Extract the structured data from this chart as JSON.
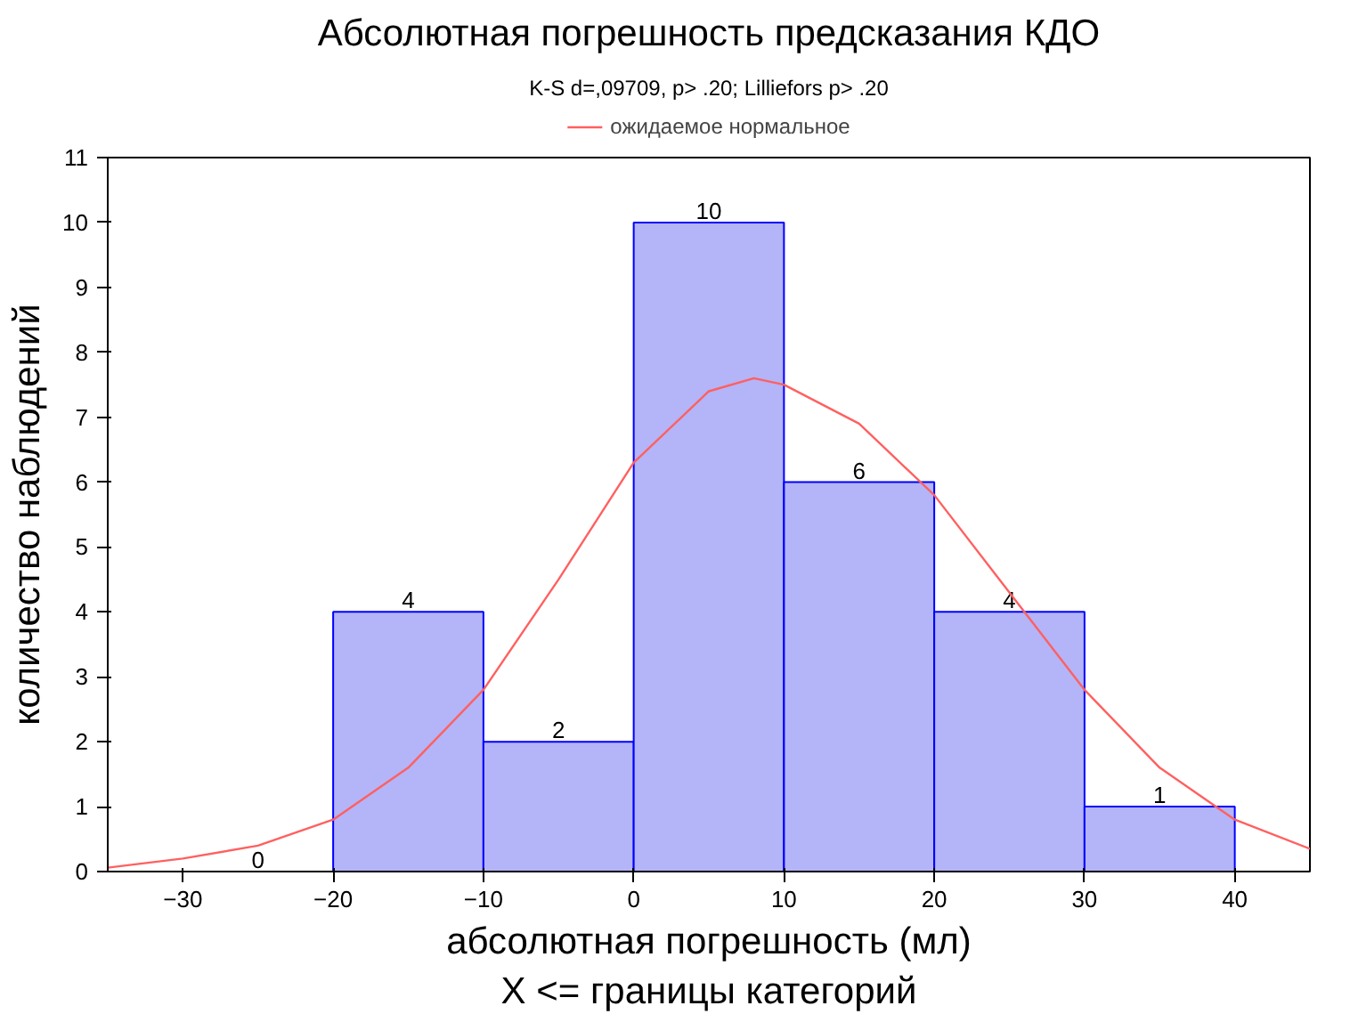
{
  "chart_data": {
    "type": "histogram",
    "title": "Абсолютная погрешность предсказания КДО",
    "subtitle": "K-S d=,09709, p> .20; Lilliefors p> .20",
    "xlabel": "абсолютная погрешность (мл)\nX <= границы категорий",
    "ylabel": "количество наблюдений",
    "bins": [
      -30,
      -20,
      -10,
      0,
      10,
      20,
      30,
      40
    ],
    "values": [
      0,
      4,
      2,
      10,
      6,
      4,
      1
    ],
    "color": "#b4b4f8",
    "value_labels": [
      "0",
      "4",
      "2",
      "10",
      "6",
      "4",
      "1"
    ],
    "series": [
      {
        "type": "line",
        "name": "ожидаемое нормальное",
        "color": "#ff6060",
        "x": [
          -35,
          -30,
          -25,
          -20,
          -15,
          -10,
          -5,
          0,
          5,
          8,
          10,
          15,
          20,
          25,
          30,
          35,
          40,
          45
        ],
        "values": [
          0.06,
          0.2,
          0.4,
          0.8,
          1.6,
          2.8,
          4.5,
          6.3,
          7.4,
          7.6,
          7.5,
          6.9,
          5.8,
          4.3,
          2.8,
          1.6,
          0.8,
          0.35
        ]
      }
    ],
    "xlim": [
      -35,
      45
    ],
    "ylim": [
      0,
      11
    ],
    "xticks": [
      -30,
      -20,
      -10,
      0,
      10,
      20,
      30,
      40
    ],
    "yticks": [
      0,
      1,
      2,
      3,
      4,
      5,
      6,
      7,
      8,
      9,
      10,
      11
    ],
    "grid": false,
    "legend": "top"
  }
}
